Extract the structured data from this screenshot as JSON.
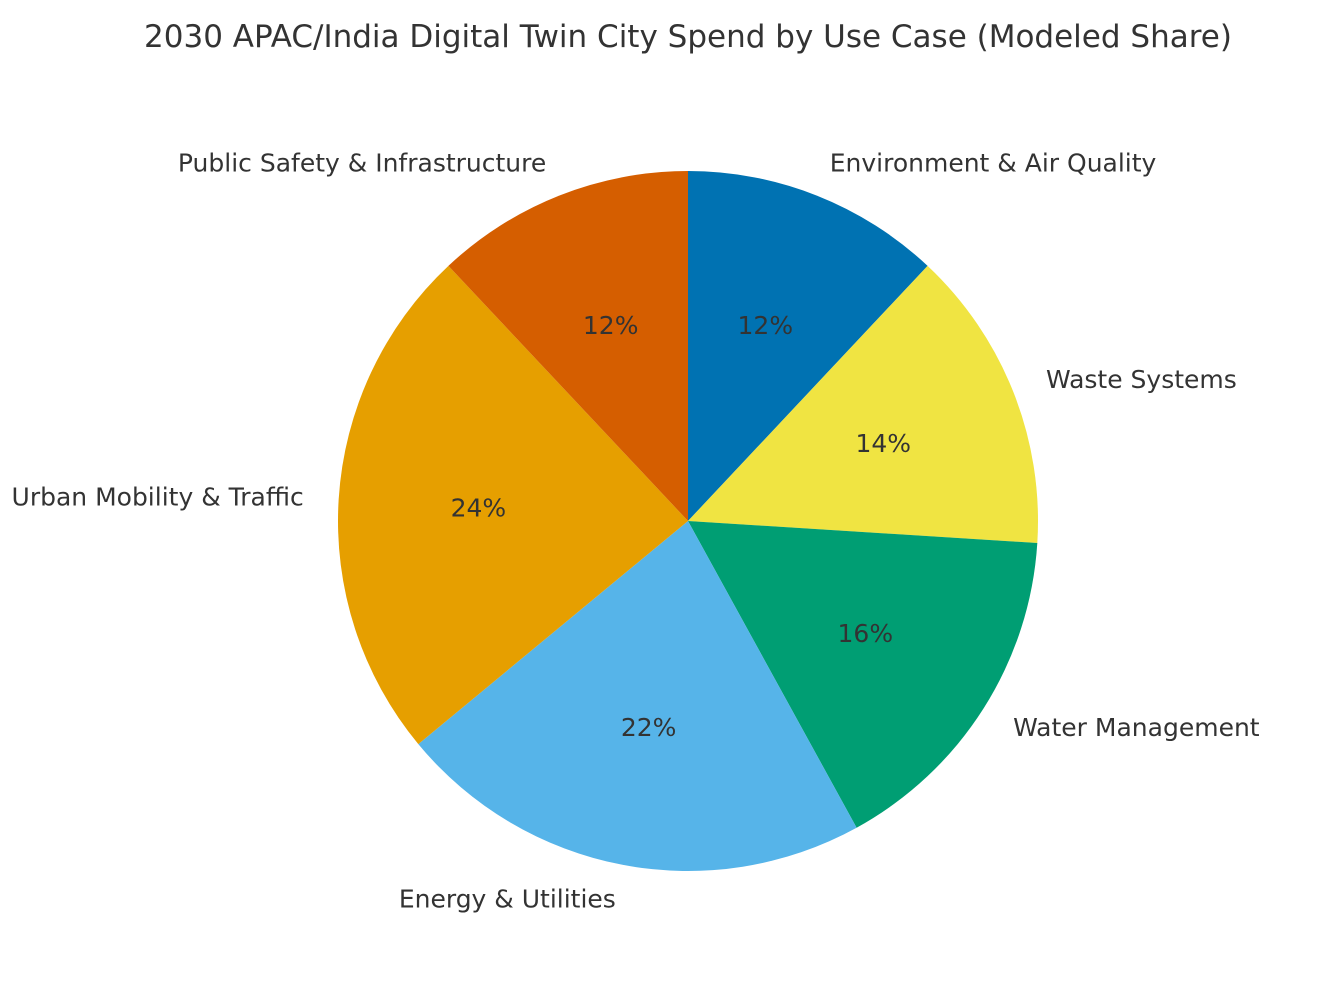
{
  "chart_data": {
    "type": "pie",
    "title": "2030 APAC/India Digital Twin City Spend by Use Case (Modeled Share)",
    "start_angle_deg": 90,
    "direction": "clockwise",
    "slices": [
      {
        "label": "Environment & Air Quality",
        "value": 12,
        "pct_label": "12%",
        "color": "#0072B2"
      },
      {
        "label": "Waste Systems",
        "value": 14,
        "pct_label": "14%",
        "color": "#F0E442"
      },
      {
        "label": "Water Management",
        "value": 16,
        "pct_label": "16%",
        "color": "#009E73"
      },
      {
        "label": "Energy & Utilities",
        "value": 22,
        "pct_label": "22%",
        "color": "#56B4E9"
      },
      {
        "label": "Urban Mobility & Traffic",
        "value": 24,
        "pct_label": "24%",
        "color": "#E69F00"
      },
      {
        "label": "Public Safety & Infrastructure",
        "value": 12,
        "pct_label": "12%",
        "color": "#D55E00"
      }
    ]
  }
}
